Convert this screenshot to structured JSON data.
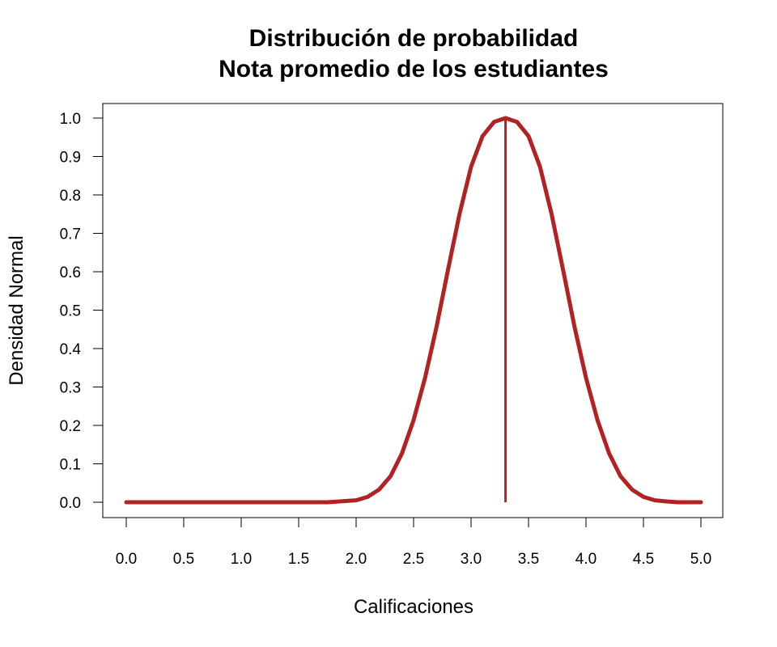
{
  "chart_data": {
    "type": "line",
    "title": [
      "Distribución de probabilidad",
      "Nota promedio de los estudiantes"
    ],
    "xlabel": "Calificaciones",
    "ylabel": "Densidad Normal",
    "xlim": [
      0,
      5
    ],
    "ylim": [
      0,
      1
    ],
    "xticks": [
      "0.0",
      "0.5",
      "1.0",
      "1.5",
      "2.0",
      "2.5",
      "3.0",
      "3.5",
      "4.0",
      "4.5",
      "5.0"
    ],
    "yticks": [
      "0.0",
      "0.1",
      "0.2",
      "0.3",
      "0.4",
      "0.5",
      "0.6",
      "0.7",
      "0.8",
      "0.9",
      "1.0"
    ],
    "series": [
      {
        "x": [
          0.0,
          0.25,
          0.5,
          0.75,
          1.0,
          1.25,
          1.5,
          1.75,
          2.0,
          2.1,
          2.2,
          2.3,
          2.4,
          2.5,
          2.6,
          2.7,
          2.8,
          2.9,
          3.0,
          3.1,
          3.2,
          3.3,
          3.4,
          3.5,
          3.6,
          3.7,
          3.8,
          3.9,
          4.0,
          4.1,
          4.2,
          4.3,
          4.4,
          4.5,
          4.6,
          4.7,
          4.8,
          4.9,
          5.0
        ],
        "y": [
          0.0,
          0.0,
          0.0,
          0.0,
          0.0,
          0.0,
          0.0,
          0.0,
          0.005,
          0.014,
          0.033,
          0.068,
          0.128,
          0.214,
          0.324,
          0.457,
          0.606,
          0.751,
          0.873,
          0.953,
          0.99,
          1.0,
          0.99,
          0.953,
          0.873,
          0.751,
          0.606,
          0.457,
          0.324,
          0.214,
          0.128,
          0.068,
          0.033,
          0.014,
          0.005,
          0.002,
          0.0,
          0.0,
          0.0
        ],
        "color": "#b22222"
      }
    ],
    "vline": {
      "x": 3.3,
      "y0": 0,
      "y1": 1.0,
      "color": "#b22222"
    },
    "colors": {
      "line": "#b22222",
      "axis": "#000000"
    },
    "grid": false
  }
}
